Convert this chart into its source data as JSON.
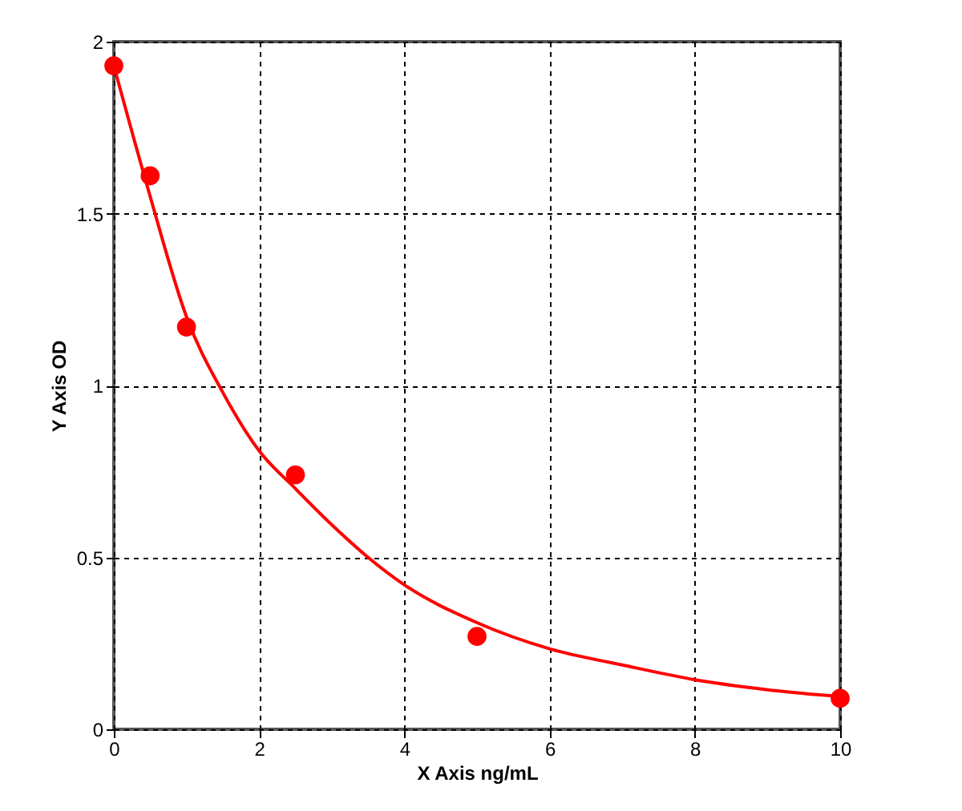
{
  "chart_data": {
    "type": "scatter",
    "xlabel": "X Axis ng/mL",
    "ylabel": "Y Axis OD",
    "xlim": [
      0,
      10
    ],
    "ylim": [
      0,
      2
    ],
    "xticks": [
      0,
      2,
      4,
      6,
      8,
      10
    ],
    "yticks": [
      {
        "value": 0,
        "label": "0"
      },
      0.5,
      {
        "value": 1,
        "label": "1"
      },
      1.5,
      {
        "value": 2,
        "label": "2"
      }
    ],
    "grid": true,
    "series": [
      {
        "color": "#ff0000",
        "marker": "circle",
        "x": [
          0,
          0.5,
          1,
          2.5,
          5,
          10
        ],
        "values": [
          1.93,
          1.61,
          1.17,
          0.74,
          0.27,
          0.09
        ]
      },
      {
        "type": "line",
        "color": "#ff0000",
        "line_style": "solid",
        "x": [
          0,
          0.5,
          1,
          1.5,
          2,
          2.5,
          3,
          3.5,
          4,
          5,
          6,
          7,
          8,
          9,
          10
        ],
        "values": [
          1.93,
          1.55,
          1.2,
          0.98,
          0.81,
          0.7,
          0.595,
          0.5,
          0.42,
          0.31,
          0.234,
          0.187,
          0.144,
          0.115,
          0.095
        ]
      }
    ]
  }
}
